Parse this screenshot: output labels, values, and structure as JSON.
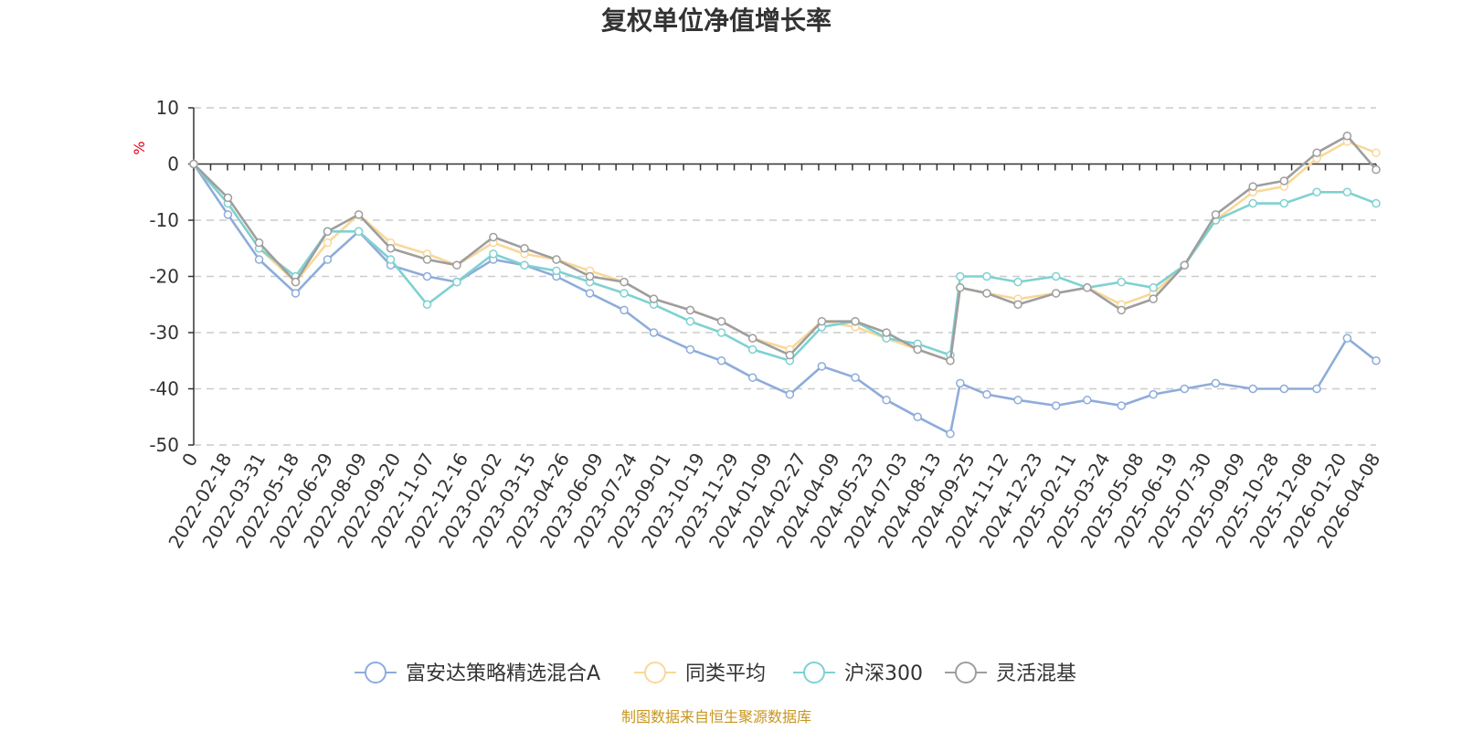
{
  "chart_data": {
    "type": "line",
    "title": "复权单位净值增长率",
    "ylabel": "%",
    "ylim": [
      -50,
      10
    ],
    "y_ticks": [
      "10",
      "0",
      "-10",
      "-20",
      "-30",
      "-40",
      "-50"
    ],
    "y_tick_values": [
      10,
      0,
      -10,
      -20,
      -30,
      -40,
      -50
    ],
    "x_tick_labels": [
      "0",
      "2022-02-18",
      "2022-03-31",
      "2022-05-18",
      "2022-06-29",
      "2022-08-09",
      "2022-09-20",
      "2022-11-07",
      "2022-12-16",
      "2023-02-02",
      "2023-03-15",
      "2023-04-26",
      "2023-06-09",
      "2023-07-24",
      "2023-09-01",
      "2023-10-19",
      "2023-11-29",
      "2024-01-09",
      "2024-02-27",
      "2024-04-09",
      "2024-05-23",
      "2024-07-03",
      "2024-08-13",
      "2024-09-25",
      "2024-11-12",
      "2024-12-23",
      "2025-02-11",
      "2025-03-24",
      "2025-05-08",
      "2025-06-19",
      "2025-07-30",
      "2025-09-09",
      "2025-10-28",
      "2025-12-08",
      "2026-01-20",
      "2026-04-08"
    ],
    "grid": "dashed horizontal",
    "legend_position": "bottom",
    "x_dates": [
      "2022-01-04",
      "2022-02-18",
      "2022-03-31",
      "2022-05-18",
      "2022-06-29",
      "2022-08-09",
      "2022-09-20",
      "2022-11-07",
      "2022-12-16",
      "2023-02-02",
      "2023-03-15",
      "2023-04-26",
      "2023-06-09",
      "2023-07-24",
      "2023-09-01",
      "2023-10-19",
      "2023-11-29",
      "2024-01-09",
      "2024-02-27",
      "2024-04-09",
      "2024-05-23",
      "2024-07-03",
      "2024-08-13",
      "2024-09-25",
      "2024-10-08",
      "2024-11-12",
      "2024-12-23",
      "2025-02-11",
      "2025-03-24",
      "2025-05-08",
      "2025-06-19",
      "2025-07-30",
      "2025-09-09",
      "2025-10-28",
      "2025-12-08",
      "2026-01-20",
      "2026-03-01",
      "2026-04-08"
    ],
    "series": [
      {
        "name": "富安达策略精选混合A",
        "color": "#8EACDA",
        "values": [
          0,
          -9,
          -17,
          -23,
          -17,
          -12,
          -18,
          -20,
          -21,
          -17,
          -18,
          -20,
          -23,
          -26,
          -30,
          -33,
          -35,
          -38,
          -41,
          -36,
          -38,
          -42,
          -45,
          -48,
          -39,
          -41,
          -42,
          -43,
          -42,
          -43,
          -41,
          -40,
          -39,
          -40,
          -40,
          -40,
          -31,
          -35
        ]
      },
      {
        "name": "同类平均",
        "color": "#F9D899",
        "values": [
          0,
          -7,
          -15,
          -21,
          -14,
          -9,
          -14,
          -16,
          -18,
          -14,
          -16,
          -17,
          -19,
          -21,
          -24,
          -26,
          -28,
          -31,
          -33,
          -28,
          -29,
          -31,
          -33,
          -35,
          -22,
          -23,
          -24,
          -23,
          -22,
          -25,
          -23,
          -18,
          -10,
          -5,
          -4,
          1,
          4,
          2
        ]
      },
      {
        "name": "沪深300",
        "color": "#7FD1D1",
        "values": [
          0,
          -7,
          -15,
          -20,
          -12,
          -12,
          -17,
          -25,
          -21,
          -16,
          -18,
          -19,
          -21,
          -23,
          -25,
          -28,
          -30,
          -33,
          -35,
          -29,
          -28,
          -31,
          -32,
          -34,
          -20,
          -20,
          -21,
          -20,
          -22,
          -21,
          -22,
          -18,
          -10,
          -7,
          -7,
          -5,
          -5,
          -7
        ]
      },
      {
        "name": "灵活混基",
        "color": "#9E9E9E",
        "values": [
          0,
          -6,
          -14,
          -21,
          -12,
          -9,
          -15,
          -17,
          -18,
          -13,
          -15,
          -17,
          -20,
          -21,
          -24,
          -26,
          -28,
          -31,
          -34,
          -28,
          -28,
          -30,
          -33,
          -35,
          -22,
          -23,
          -25,
          -23,
          -22,
          -26,
          -24,
          -18,
          -9,
          -4,
          -3,
          2,
          5,
          -1
        ]
      }
    ]
  },
  "source_note": "制图数据来自恒生聚源数据库",
  "colors": {
    "axis": "#333333",
    "grid": "#cccccc",
    "unit_label": "#e60012",
    "source_note": "#c8961e"
  }
}
